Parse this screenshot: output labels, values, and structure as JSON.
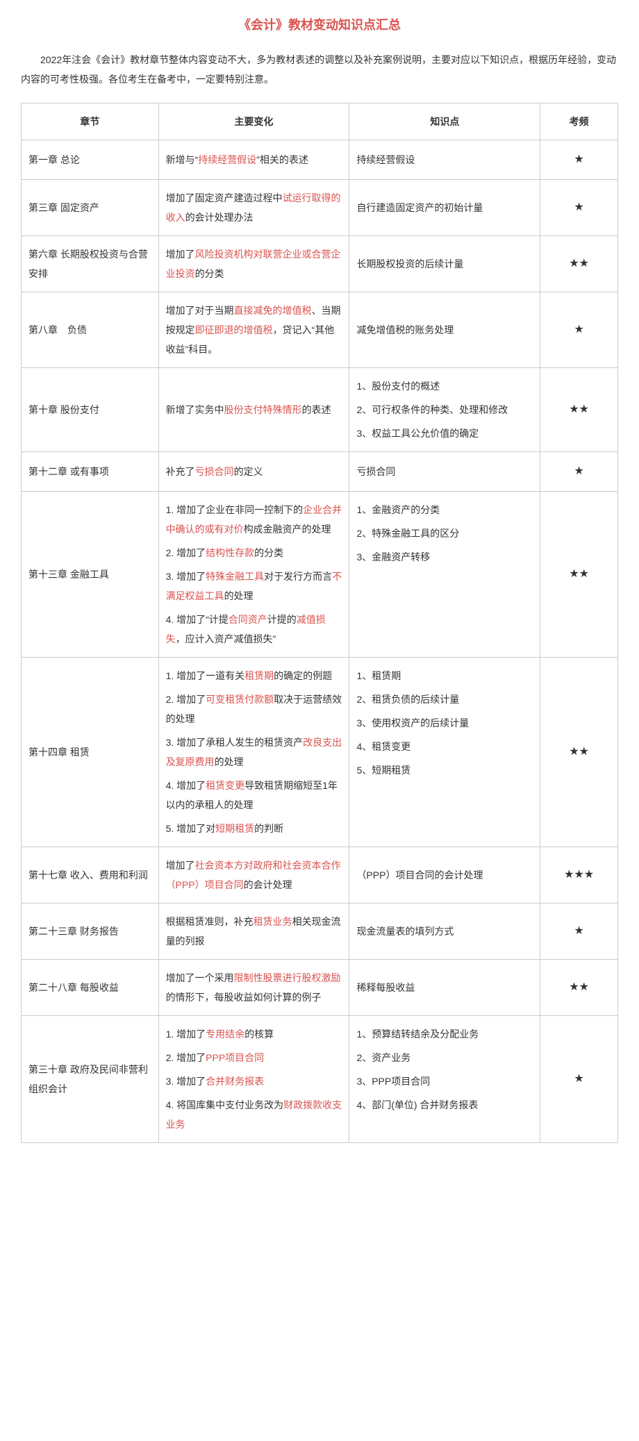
{
  "title": "《会计》教材变动知识点汇总",
  "intro": "2022年注会《会计》教材章节整体内容变动不大，多为教材表述的调整以及补充案例说明，主要对应以下知识点，根据历年经验，变动内容的可考性极强。各位考生在备考中，一定要特别注意。",
  "columns": [
    "章节",
    "主要变化",
    "知识点",
    "考频"
  ],
  "rows": [
    {
      "chapter": "第一章 总论",
      "change": [
        {
          "t": "新增与“"
        },
        {
          "t": "持续经营假设",
          "hl": true
        },
        {
          "t": "”相关的表述"
        }
      ],
      "points": [
        [
          {
            "t": "持续经营假设"
          }
        ]
      ],
      "freq": "★"
    },
    {
      "chapter": "第三章 固定资产",
      "change": [
        {
          "t": "增加了固定资产建造过程中"
        },
        {
          "t": "试运行取得的收入",
          "hl": true
        },
        {
          "t": "的会计处理办法"
        }
      ],
      "points": [
        [
          {
            "t": "自行建造固定资产的初始计量"
          }
        ]
      ],
      "freq": "★"
    },
    {
      "chapter": "第六章 长期股权投资与合营安排",
      "change": [
        {
          "t": "增加了"
        },
        {
          "t": "风险投资机构对联营企业或合营企业投资",
          "hl": true
        },
        {
          "t": "的分类"
        }
      ],
      "points": [
        [
          {
            "t": "长期股权投资的后续计量"
          }
        ]
      ],
      "freq": "★★"
    },
    {
      "chapter": "第八章　负债",
      "change": [
        {
          "t": "增加了对于当期"
        },
        {
          "t": "直接减免的增值税",
          "hl": true
        },
        {
          "t": "、当期按规定"
        },
        {
          "t": "即征即退的增值税",
          "hl": true
        },
        {
          "t": "，贷记入“其他收益”科目。"
        }
      ],
      "points": [
        [
          {
            "t": "减免增值税的账务处理"
          }
        ]
      ],
      "freq": "★"
    },
    {
      "chapter": "第十章 股份支付",
      "change": [
        {
          "t": "新增了实务中"
        },
        {
          "t": "股份支付特殊情形",
          "hl": true
        },
        {
          "t": "的表述"
        }
      ],
      "points": [
        [
          {
            "t": "1、股份支付的概述"
          }
        ],
        [
          {
            "t": "2、可行权条件的种类、处理和修改"
          }
        ],
        [
          {
            "t": "3、权益工具公允价值的确定"
          }
        ]
      ],
      "freq": "★★"
    },
    {
      "chapter": "第十二章 或有事项",
      "change": [
        {
          "t": "补充了"
        },
        {
          "t": "亏损合同",
          "hl": true
        },
        {
          "t": "的定义"
        }
      ],
      "points": [
        [
          {
            "t": "亏损合同"
          }
        ]
      ],
      "freq": "★"
    },
    {
      "chapter": "第十三章 金融工具",
      "changeList": [
        [
          {
            "t": "1. 增加了企业在非同一控制下的"
          },
          {
            "t": "企业合并中确认的或有对价",
            "hl": true
          },
          {
            "t": "构成金融资产的处理"
          }
        ],
        [
          {
            "t": "2. 增加了"
          },
          {
            "t": "结构性存款",
            "hl": true
          },
          {
            "t": "的分类"
          }
        ],
        [
          {
            "t": "3. 增加了"
          },
          {
            "t": "特殊金融工具",
            "hl": true
          },
          {
            "t": "对于发行方而言"
          },
          {
            "t": "不满足权益工具",
            "hl": true
          },
          {
            "t": "的处理"
          }
        ],
        [
          {
            "t": "4. 增加了“计提"
          },
          {
            "t": "合同资产",
            "hl": true
          },
          {
            "t": "计提的"
          },
          {
            "t": "减值损失",
            "hl": true
          },
          {
            "t": "，应计入资产减值损失”"
          }
        ]
      ],
      "points": [
        [
          {
            "t": "1、金融资产的分类"
          }
        ],
        [
          {
            "t": "2、特殊金融工具的区分"
          }
        ],
        [
          {
            "t": "3、金融资产转移"
          }
        ]
      ],
      "freq": "★★"
    },
    {
      "chapter": "第十四章 租赁",
      "changeList": [
        [
          {
            "t": "1. 增加了一道有关"
          },
          {
            "t": "租赁期",
            "hl": true
          },
          {
            "t": "的确定的例题"
          }
        ],
        [
          {
            "t": "2. 增加了"
          },
          {
            "t": "可变租赁付款额",
            "hl": true
          },
          {
            "t": "取决于运营绩效的处理"
          }
        ],
        [
          {
            "t": "3. 增加了承租人发生的租赁资产"
          },
          {
            "t": "改良支出及复原费用",
            "hl": true
          },
          {
            "t": "的处理"
          }
        ],
        [
          {
            "t": "4. 增加了"
          },
          {
            "t": "租赁变更",
            "hl": true
          },
          {
            "t": "导致租赁期缩短至1年以内的承租人的处理"
          }
        ],
        [
          {
            "t": "5. 增加了对"
          },
          {
            "t": "短期租赁",
            "hl": true
          },
          {
            "t": "的判断"
          }
        ]
      ],
      "points": [
        [
          {
            "t": "1、租赁期"
          }
        ],
        [
          {
            "t": "2、租赁负债的后续计量"
          }
        ],
        [
          {
            "t": "3、使用权资产的后续计量"
          }
        ],
        [
          {
            "t": "4、租赁变更"
          }
        ],
        [
          {
            "t": "5、短期租赁"
          }
        ]
      ],
      "freq": "★★"
    },
    {
      "chapter": "第十七章 收入、费用和利润",
      "change": [
        {
          "t": "增加了"
        },
        {
          "t": "社会资本方对政府和社会资本合作（PPP）项目合同",
          "hl": true
        },
        {
          "t": "的会计处理"
        }
      ],
      "points": [
        [
          {
            "t": "（PPP）项目合同的会计处理"
          }
        ]
      ],
      "freq": "★★★"
    },
    {
      "chapter": "第二十三章 财务报告",
      "change": [
        {
          "t": "根据租赁准则，补充"
        },
        {
          "t": "租赁业务",
          "hl": true
        },
        {
          "t": "相关现金流量的列报"
        }
      ],
      "points": [
        [
          {
            "t": "现金流量表的填列方式"
          }
        ]
      ],
      "freq": "★"
    },
    {
      "chapter": "第二十八章 每股收益",
      "change": [
        {
          "t": "增加了一个采用"
        },
        {
          "t": "限制性股票进行股权激励",
          "hl": true
        },
        {
          "t": "的情形下，每股收益如何计算的例子"
        }
      ],
      "points": [
        [
          {
            "t": "稀释每股收益"
          }
        ]
      ],
      "freq": "★★"
    },
    {
      "chapter": "第三十章 政府及民间非营利组织会计",
      "changeList": [
        [
          {
            "t": "1. 增加了"
          },
          {
            "t": "专用结余",
            "hl": true
          },
          {
            "t": "的核算"
          }
        ],
        [
          {
            "t": "2. 增加了"
          },
          {
            "t": "PPP项目合同",
            "hl": true
          }
        ],
        [
          {
            "t": "3. 增加了"
          },
          {
            "t": "合并财务报表",
            "hl": true
          }
        ],
        [
          {
            "t": "4. 将国库集中支付业务改为"
          },
          {
            "t": "财政拨款收支业务",
            "hl": true
          }
        ]
      ],
      "points": [
        [
          {
            "t": "1、预算结转结余及分配业务"
          }
        ],
        [
          {
            "t": "2、资产业务"
          }
        ],
        [
          {
            "t": "3、PPP项目合同"
          }
        ],
        [
          {
            "t": "4、部门(单位) 合并财务报表"
          }
        ]
      ],
      "freq": "★"
    }
  ]
}
